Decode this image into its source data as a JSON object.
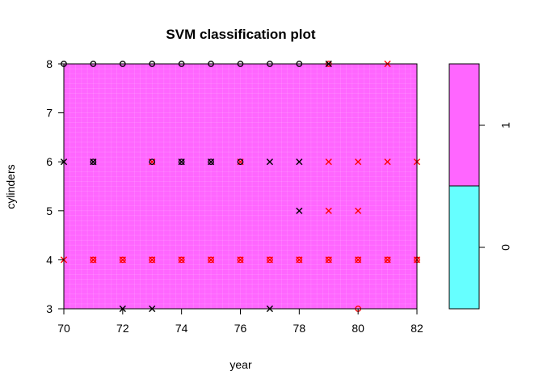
{
  "chart_data": {
    "type": "scatter",
    "title": "SVM classification plot",
    "xlabel": "year",
    "ylabel": "cylinders",
    "xlim": [
      70,
      82
    ],
    "ylim": [
      3,
      8
    ],
    "xticks": [
      "70",
      "72",
      "74",
      "76",
      "78",
      "80",
      "82"
    ],
    "yticks": [
      "3",
      "4",
      "5",
      "6",
      "7",
      "8"
    ],
    "decision_region_color": "#FF66FF",
    "legend": {
      "labels": [
        "0",
        "1"
      ],
      "colors": [
        "#66FFFF",
        "#FF66FF"
      ]
    },
    "point_colors": {
      "class_0": "#000000",
      "class_1": "#FF0000"
    },
    "points": [
      {
        "x": 70,
        "y": 8,
        "m": "o",
        "c": 0
      },
      {
        "x": 71,
        "y": 8,
        "m": "o",
        "c": 0
      },
      {
        "x": 72,
        "y": 8,
        "m": "o",
        "c": 0
      },
      {
        "x": 73,
        "y": 8,
        "m": "o",
        "c": 0
      },
      {
        "x": 74,
        "y": 8,
        "m": "o",
        "c": 0
      },
      {
        "x": 75,
        "y": 8,
        "m": "o",
        "c": 0
      },
      {
        "x": 76,
        "y": 8,
        "m": "o",
        "c": 0
      },
      {
        "x": 77,
        "y": 8,
        "m": "o",
        "c": 0
      },
      {
        "x": 78,
        "y": 8,
        "m": "o",
        "c": 0
      },
      {
        "x": 79,
        "y": 8,
        "m": "o",
        "c": 1
      },
      {
        "x": 79,
        "y": 8,
        "m": "x",
        "c": 0
      },
      {
        "x": 81,
        "y": 8,
        "m": "x",
        "c": 1
      },
      {
        "x": 70,
        "y": 6,
        "m": "x",
        "c": 0
      },
      {
        "x": 71,
        "y": 6,
        "m": "o",
        "c": 0
      },
      {
        "x": 71,
        "y": 6,
        "m": "x",
        "c": 0
      },
      {
        "x": 73,
        "y": 6,
        "m": "x",
        "c": 1
      },
      {
        "x": 73,
        "y": 6,
        "m": "o",
        "c": 0
      },
      {
        "x": 74,
        "y": 6,
        "m": "x",
        "c": 0
      },
      {
        "x": 74,
        "y": 6,
        "m": "o",
        "c": 0
      },
      {
        "x": 75,
        "y": 6,
        "m": "x",
        "c": 0
      },
      {
        "x": 75,
        "y": 6,
        "m": "o",
        "c": 0
      },
      {
        "x": 76,
        "y": 6,
        "m": "x",
        "c": 1
      },
      {
        "x": 76,
        "y": 6,
        "m": "o",
        "c": 0
      },
      {
        "x": 77,
        "y": 6,
        "m": "x",
        "c": 0
      },
      {
        "x": 78,
        "y": 6,
        "m": "x",
        "c": 0
      },
      {
        "x": 79,
        "y": 6,
        "m": "x",
        "c": 1
      },
      {
        "x": 80,
        "y": 6,
        "m": "x",
        "c": 1
      },
      {
        "x": 81,
        "y": 6,
        "m": "x",
        "c": 1
      },
      {
        "x": 82,
        "y": 6,
        "m": "x",
        "c": 1
      },
      {
        "x": 78,
        "y": 5,
        "m": "x",
        "c": 0
      },
      {
        "x": 79,
        "y": 5,
        "m": "x",
        "c": 1
      },
      {
        "x": 80,
        "y": 5,
        "m": "x",
        "c": 1
      },
      {
        "x": 70,
        "y": 4,
        "m": "x",
        "c": 1
      },
      {
        "x": 71,
        "y": 4,
        "m": "x",
        "c": 1
      },
      {
        "x": 71,
        "y": 4,
        "m": "o",
        "c": 1
      },
      {
        "x": 72,
        "y": 4,
        "m": "x",
        "c": 1
      },
      {
        "x": 72,
        "y": 4,
        "m": "o",
        "c": 1
      },
      {
        "x": 73,
        "y": 4,
        "m": "x",
        "c": 1
      },
      {
        "x": 73,
        "y": 4,
        "m": "o",
        "c": 1
      },
      {
        "x": 74,
        "y": 4,
        "m": "x",
        "c": 1
      },
      {
        "x": 74,
        "y": 4,
        "m": "o",
        "c": 1
      },
      {
        "x": 75,
        "y": 4,
        "m": "x",
        "c": 1
      },
      {
        "x": 75,
        "y": 4,
        "m": "o",
        "c": 1
      },
      {
        "x": 76,
        "y": 4,
        "m": "x",
        "c": 1
      },
      {
        "x": 76,
        "y": 4,
        "m": "o",
        "c": 1
      },
      {
        "x": 77,
        "y": 4,
        "m": "x",
        "c": 1
      },
      {
        "x": 77,
        "y": 4,
        "m": "o",
        "c": 1
      },
      {
        "x": 78,
        "y": 4,
        "m": "x",
        "c": 1
      },
      {
        "x": 78,
        "y": 4,
        "m": "o",
        "c": 1
      },
      {
        "x": 79,
        "y": 4,
        "m": "x",
        "c": 1
      },
      {
        "x": 79,
        "y": 4,
        "m": "o",
        "c": 1
      },
      {
        "x": 80,
        "y": 4,
        "m": "x",
        "c": 1
      },
      {
        "x": 80,
        "y": 4,
        "m": "o",
        "c": 1
      },
      {
        "x": 81,
        "y": 4,
        "m": "x",
        "c": 1
      },
      {
        "x": 81,
        "y": 4,
        "m": "o",
        "c": 1
      },
      {
        "x": 82,
        "y": 4,
        "m": "x",
        "c": 1
      },
      {
        "x": 82,
        "y": 4,
        "m": "o",
        "c": 1
      },
      {
        "x": 72,
        "y": 3,
        "m": "x",
        "c": 0
      },
      {
        "x": 73,
        "y": 3,
        "m": "x",
        "c": 0
      },
      {
        "x": 77,
        "y": 3,
        "m": "x",
        "c": 0
      },
      {
        "x": 80,
        "y": 3,
        "m": "o",
        "c": 1
      }
    ]
  }
}
